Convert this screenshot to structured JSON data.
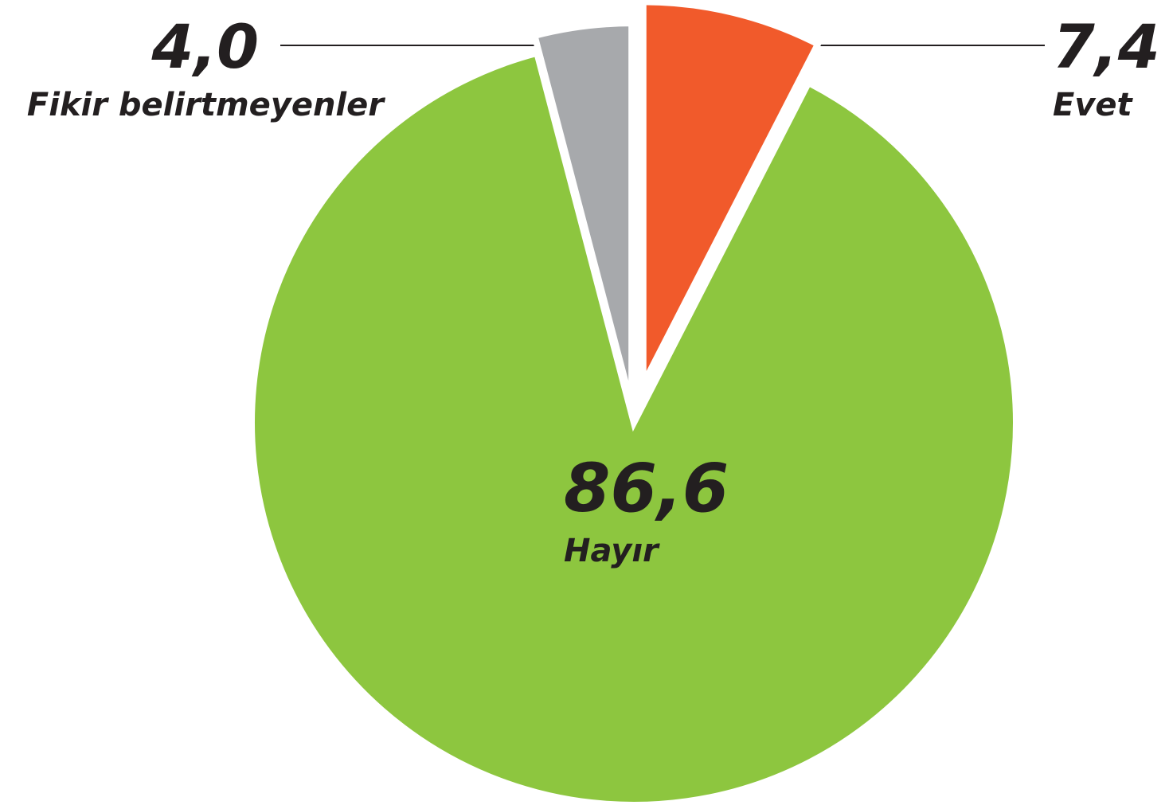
{
  "chart_data": {
    "type": "pie",
    "categories": [
      "Evet",
      "Hayır",
      "Fikir belirtmeyenler"
    ],
    "values": [
      7.4,
      86.6,
      4.0
    ],
    "value_labels": [
      "7,4",
      "86,6",
      "4,0"
    ],
    "colors": [
      "#f15a2b",
      "#8dc63f",
      "#a7a9ac"
    ]
  }
}
